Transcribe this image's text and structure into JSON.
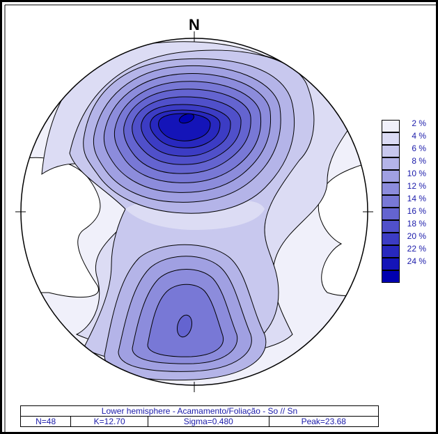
{
  "north_label": "N",
  "info": {
    "title": "Lower hemisphere - Acamamento/Foliação - So // Sn",
    "n": "N=48",
    "k": "K=12.70",
    "sigma": "Sigma=0.480",
    "peak": "Peak=23.68"
  },
  "legend": [
    {
      "label": "2 %",
      "color": "#f0f0fa"
    },
    {
      "label": "4 %",
      "color": "#dcdcf4"
    },
    {
      "label": "6 %",
      "color": "#c8c8ee"
    },
    {
      "label": "8 %",
      "color": "#b4b4e8"
    },
    {
      "label": "10 %",
      "color": "#a0a0e2"
    },
    {
      "label": "12 %",
      "color": "#8c8cdc"
    },
    {
      "label": "14 %",
      "color": "#7878d6"
    },
    {
      "label": "16 %",
      "color": "#6464d0"
    },
    {
      "label": "18 %",
      "color": "#5050ca"
    },
    {
      "label": "20 %",
      "color": "#3c3cc4"
    },
    {
      "label": "22 %",
      "color": "#2828be"
    },
    {
      "label": "24 %",
      "color": "#1414b8"
    },
    {
      "label": "",
      "color": "#0000b0"
    }
  ]
}
